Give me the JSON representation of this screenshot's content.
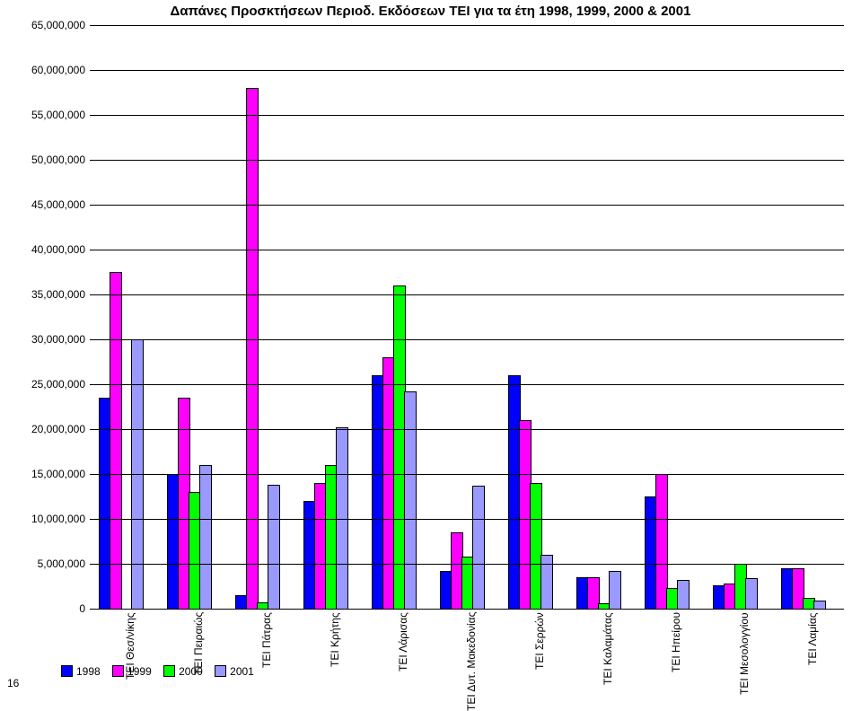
{
  "title": "Δαπάνες Προσκτήσεων Περιοδ. Εκδόσεων ΤΕΙ για τα έτη 1998, 1999, 2000 & 2001",
  "page_number": "16",
  "chart": {
    "type": "bar",
    "ylim": [
      0,
      65000000
    ],
    "ytick_step": 5000000,
    "yticks": [
      "0",
      "5,000,000",
      "10,000,000",
      "15,000,000",
      "20,000,000",
      "25,000,000",
      "30,000,000",
      "35,000,000",
      "40,000,000",
      "45,000,000",
      "50,000,000",
      "55,000,000",
      "60,000,000",
      "65,000,000"
    ],
    "categories": [
      "ΤΕΙ Θεσ/νίκης",
      "ΤΕΙ Πειραιώς",
      "ΤΕΙ Πάτρας",
      "ΤΕΙ Κρήτης",
      "ΤΕΙ Λάρισας",
      "ΤΕΙ Δυτ. Μακεδονίας",
      "ΤΕΙ Σερρών",
      "ΤΕΙ Καλαμάτας",
      "ΤΕΙ Ηπείρου",
      "ΤΕΙ Μεσολογγίου",
      "ΤΕΙ Λαμίας"
    ],
    "series": [
      {
        "name": "1998",
        "color": "#0000ff",
        "values": [
          23500000,
          15000000,
          1500000,
          12000000,
          26000000,
          4200000,
          26000000,
          3500000,
          12500000,
          2600000,
          4500000
        ]
      },
      {
        "name": "1999",
        "color": "#ff00ff",
        "values": [
          37500000,
          23500000,
          58000000,
          14000000,
          28000000,
          8500000,
          21000000,
          3500000,
          15000000,
          2800000,
          4500000
        ]
      },
      {
        "name": "2000",
        "color": "#00ff00",
        "values": [
          0,
          13000000,
          700000,
          16000000,
          36000000,
          5800000,
          14000000,
          600000,
          2300000,
          5000000,
          1200000
        ]
      },
      {
        "name": "2001",
        "color": "#9999ff",
        "values": [
          30000000,
          16000000,
          13800000,
          20200000,
          24200000,
          13700000,
          6000000,
          4200000,
          3200000,
          3400000,
          900000
        ]
      }
    ],
    "grid_color": "#000000",
    "background_color": "#ffffff",
    "bar_group_width": 48,
    "group_gap": 28,
    "bar_border": "#000000"
  },
  "legend_labels": [
    "1998",
    "1999",
    "2000",
    "2001"
  ]
}
